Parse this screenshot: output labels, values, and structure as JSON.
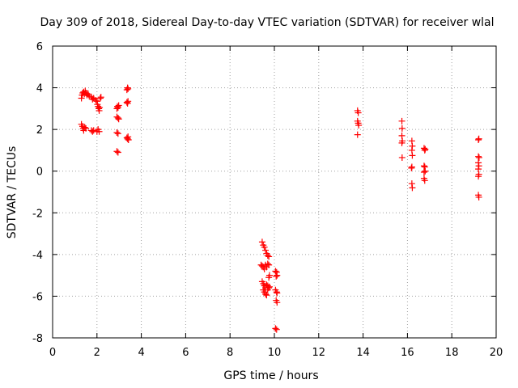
{
  "chart_data": {
    "type": "scatter",
    "title": "Day 309 of 2018, Sidereal Day-to-day VTEC variation (SDTVAR) for receiver wlal",
    "xlabel": "GPS time / hours",
    "ylabel": "SDTVAR / TECUs",
    "xlim": [
      0,
      20
    ],
    "ylim": [
      -8,
      6
    ],
    "xticks": [
      0,
      2,
      4,
      6,
      8,
      10,
      12,
      14,
      16,
      18,
      20
    ],
    "yticks": [
      -8,
      -6,
      -4,
      -2,
      0,
      2,
      4,
      6
    ],
    "grid": true,
    "marker": "plus",
    "color": "#ff0000",
    "series": [
      {
        "name": "SDTVAR",
        "points": [
          [
            1.3,
            3.5
          ],
          [
            1.33,
            3.65
          ],
          [
            1.36,
            3.75
          ],
          [
            1.4,
            3.8
          ],
          [
            1.43,
            3.7
          ],
          [
            1.47,
            3.85
          ],
          [
            1.5,
            3.75
          ],
          [
            1.55,
            3.65
          ],
          [
            1.6,
            3.7
          ],
          [
            1.65,
            3.6
          ],
          [
            1.75,
            3.55
          ],
          [
            1.8,
            3.45
          ],
          [
            1.85,
            3.5
          ],
          [
            1.95,
            3.4
          ],
          [
            2.0,
            3.35
          ],
          [
            2.02,
            3.2
          ],
          [
            2.05,
            3.1
          ],
          [
            2.08,
            3.0
          ],
          [
            2.1,
            2.9
          ],
          [
            2.12,
            3.05
          ],
          [
            2.15,
            3.5
          ],
          [
            2.18,
            3.55
          ],
          [
            1.3,
            2.25
          ],
          [
            1.35,
            2.15
          ],
          [
            1.38,
            2.05
          ],
          [
            1.4,
            1.95
          ],
          [
            1.45,
            2.1
          ],
          [
            1.5,
            2.05
          ],
          [
            1.75,
            1.95
          ],
          [
            1.8,
            1.9
          ],
          [
            1.85,
            1.95
          ],
          [
            2.0,
            1.9
          ],
          [
            2.05,
            2.0
          ],
          [
            2.1,
            1.9
          ],
          [
            2.9,
            3.0
          ],
          [
            2.92,
            3.1
          ],
          [
            2.95,
            3.05
          ],
          [
            2.98,
            3.15
          ],
          [
            2.9,
            2.6
          ],
          [
            2.95,
            2.55
          ],
          [
            2.98,
            2.5
          ],
          [
            2.9,
            1.85
          ],
          [
            2.95,
            1.8
          ],
          [
            2.9,
            0.95
          ],
          [
            2.95,
            0.9
          ],
          [
            3.35,
            3.9
          ],
          [
            3.38,
            4.0
          ],
          [
            3.4,
            3.95
          ],
          [
            3.35,
            3.3
          ],
          [
            3.38,
            3.25
          ],
          [
            3.4,
            3.35
          ],
          [
            3.35,
            1.6
          ],
          [
            3.38,
            1.55
          ],
          [
            3.4,
            1.65
          ],
          [
            3.42,
            1.5
          ],
          [
            13.75,
            2.9
          ],
          [
            13.78,
            2.8
          ],
          [
            13.75,
            2.4
          ],
          [
            13.78,
            2.3
          ],
          [
            13.8,
            2.2
          ],
          [
            13.75,
            1.75
          ],
          [
            15.75,
            2.4
          ],
          [
            15.76,
            2.05
          ],
          [
            15.75,
            1.7
          ],
          [
            15.77,
            1.45
          ],
          [
            15.75,
            1.35
          ],
          [
            15.76,
            0.65
          ],
          [
            16.2,
            1.45
          ],
          [
            16.22,
            1.2
          ],
          [
            16.2,
            1.0
          ],
          [
            16.22,
            0.75
          ],
          [
            16.2,
            0.2
          ],
          [
            16.18,
            0.15
          ],
          [
            16.2,
            -0.6
          ],
          [
            16.22,
            -0.8
          ],
          [
            16.75,
            1.1
          ],
          [
            16.78,
            1.0
          ],
          [
            16.8,
            1.05
          ],
          [
            16.75,
            0.25
          ],
          [
            16.78,
            0.2
          ],
          [
            16.75,
            -0.05
          ],
          [
            16.8,
            0.0
          ],
          [
            16.75,
            -0.35
          ],
          [
            16.78,
            -0.45
          ],
          [
            19.2,
            1.5
          ],
          [
            19.22,
            1.55
          ],
          [
            19.2,
            0.7
          ],
          [
            19.23,
            0.65
          ],
          [
            19.2,
            0.4
          ],
          [
            19.22,
            0.25
          ],
          [
            19.2,
            0.1
          ],
          [
            19.22,
            -0.15
          ],
          [
            19.2,
            -0.25
          ],
          [
            19.2,
            -1.15
          ],
          [
            19.22,
            -1.25
          ],
          [
            9.45,
            -3.4
          ],
          [
            9.5,
            -3.55
          ],
          [
            9.55,
            -3.65
          ],
          [
            9.6,
            -3.8
          ],
          [
            9.65,
            -3.95
          ],
          [
            9.7,
            -4.05
          ],
          [
            9.75,
            -4.1
          ],
          [
            9.4,
            -4.5
          ],
          [
            9.45,
            -4.55
          ],
          [
            9.5,
            -4.6
          ],
          [
            9.55,
            -4.7
          ],
          [
            9.6,
            -4.5
          ],
          [
            9.65,
            -4.6
          ],
          [
            9.7,
            -4.45
          ],
          [
            9.75,
            -4.5
          ],
          [
            9.75,
            -5.1
          ],
          [
            9.78,
            -5.0
          ],
          [
            9.45,
            -5.3
          ],
          [
            9.5,
            -5.4
          ],
          [
            9.55,
            -5.5
          ],
          [
            9.6,
            -5.6
          ],
          [
            9.5,
            -5.7
          ],
          [
            9.55,
            -5.8
          ],
          [
            9.6,
            -5.9
          ],
          [
            9.65,
            -5.95
          ],
          [
            9.7,
            -5.7
          ],
          [
            9.75,
            -5.6
          ],
          [
            9.7,
            -5.5
          ],
          [
            9.65,
            -5.45
          ],
          [
            9.78,
            -5.55
          ],
          [
            10.05,
            -4.8
          ],
          [
            10.1,
            -4.85
          ],
          [
            10.08,
            -5.05
          ],
          [
            10.12,
            -5.0
          ],
          [
            10.05,
            -5.7
          ],
          [
            10.1,
            -5.8
          ],
          [
            10.12,
            -5.85
          ],
          [
            10.08,
            -6.2
          ],
          [
            10.12,
            -6.3
          ],
          [
            10.05,
            -7.55
          ],
          [
            10.1,
            -7.6
          ]
        ]
      }
    ]
  }
}
